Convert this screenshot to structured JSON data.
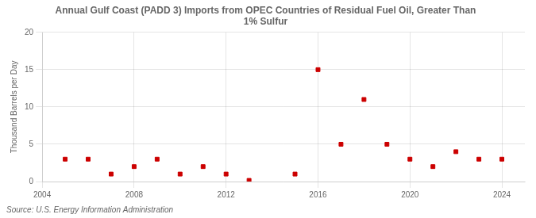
{
  "chart_data": {
    "type": "scatter",
    "title": "Annual Gulf Coast (PADD 3) Imports from OPEC Countries of Residual Fuel Oil, Greater Than\n1% Sulfur",
    "y_label": "Thousand Barrels per Day",
    "annotation": "Source: U.S. Energy Information Administration",
    "x": [
      2005,
      2006,
      2007,
      2008,
      2009,
      2010,
      2011,
      2012,
      2013,
      2015,
      2016,
      2017,
      2018,
      2019,
      2020,
      2021,
      2022,
      2023,
      2024
    ],
    "values": [
      3,
      3,
      1,
      2,
      3,
      1,
      2,
      1,
      0.15,
      1,
      15,
      5,
      11,
      5,
      3,
      2,
      4,
      3,
      3
    ],
    "color": "#cc0000",
    "marker": "square",
    "xlim": [
      2004,
      2025
    ],
    "xticks": [
      2004,
      2008,
      2012,
      2016,
      2020,
      2024
    ],
    "ylim": [
      0,
      20
    ],
    "yticks": [
      0,
      5,
      10,
      15,
      20
    ],
    "grid": true
  }
}
